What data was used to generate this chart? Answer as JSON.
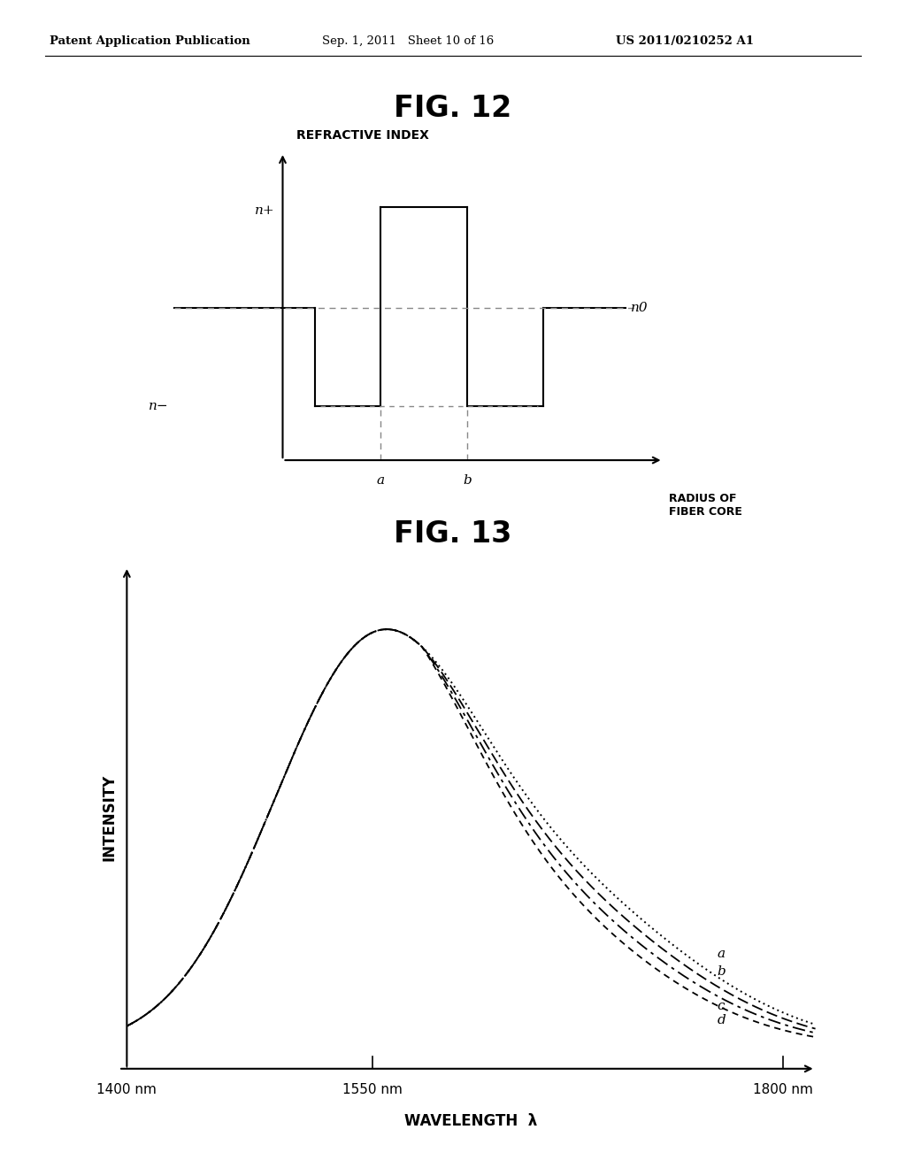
{
  "header_left": "Patent Application Publication",
  "header_center": "Sep. 1, 2011   Sheet 10 of 16",
  "header_right": "US 2011/0210252 A1",
  "fig12_title": "FIG. 12",
  "fig13_title": "FIG. 13",
  "fig12_ylabel": "REFRACTIVE INDEX",
  "fig12_xlabel": "RADIUS OF\nFIBER CORE",
  "fig12_n0_label": "n0",
  "fig12_nplus_label": "n+",
  "fig12_nminus_label": "n−",
  "fig12_a_label": "a",
  "fig12_b_label": "b",
  "fig13_ylabel": "INTENSITY",
  "fig13_xlabel": "WAVELENGTH  λ",
  "fig13_x_ticks": [
    "1400 nm",
    "1550 nm",
    "1800 nm"
  ],
  "fig13_curve_labels": [
    "a",
    "b",
    "c",
    "d"
  ],
  "background_color": "#ffffff",
  "line_color": "#000000",
  "dashed_color": "#888888"
}
